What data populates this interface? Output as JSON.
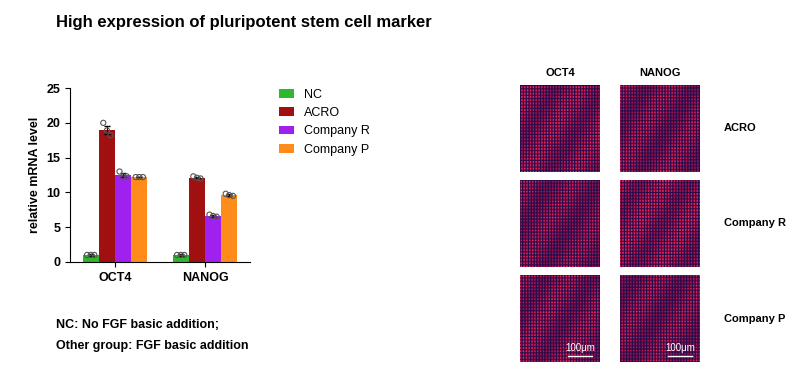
{
  "chart_data": {
    "type": "bar",
    "title": "High expression of pluripotent stem cell marker",
    "y_label": "relative mRNA level",
    "categories": [
      "OCT4",
      "NANOG"
    ],
    "series": [
      {
        "name": "NC",
        "color": "#2db82d",
        "values": [
          1.0,
          1.0
        ],
        "errors": [
          0.1,
          0.1
        ],
        "points": [
          [
            1.0,
            1.0,
            1.0
          ],
          [
            1.0,
            1.0,
            1.0
          ]
        ]
      },
      {
        "name": "ACRO",
        "color": "#a01010",
        "values": [
          19.0,
          12.1
        ],
        "errors": [
          0.6,
          0.1
        ],
        "points": [
          [
            20.0,
            18.9,
            18.2
          ],
          [
            12.3,
            12.1,
            12.0
          ]
        ]
      },
      {
        "name": "Company R",
        "color": "#a020f0",
        "values": [
          12.5,
          6.6
        ],
        "errors": [
          0.3,
          0.1
        ],
        "points": [
          [
            13.0,
            12.3,
            12.3
          ],
          [
            6.8,
            6.6,
            6.5
          ]
        ]
      },
      {
        "name": "Company P",
        "color": "#ff8c1a",
        "values": [
          12.2,
          9.6
        ],
        "errors": [
          0.05,
          0.1
        ],
        "points": [
          [
            12.2,
            12.2,
            12.2
          ],
          [
            9.8,
            9.6,
            9.5
          ]
        ]
      }
    ],
    "ylim": [
      0,
      25
    ],
    "yticks": [
      0,
      5,
      10,
      15,
      20,
      25
    ],
    "grid": false,
    "legend": "upper left",
    "annotations": [
      "NC: No FGF basic addition;",
      "Other group: FGF basic addition"
    ]
  },
  "image_panel": {
    "columns": [
      "OCT4",
      "NANOG"
    ],
    "rows": [
      "ACRO",
      "Company R",
      "Company P"
    ],
    "scale_bar": "100μm"
  }
}
